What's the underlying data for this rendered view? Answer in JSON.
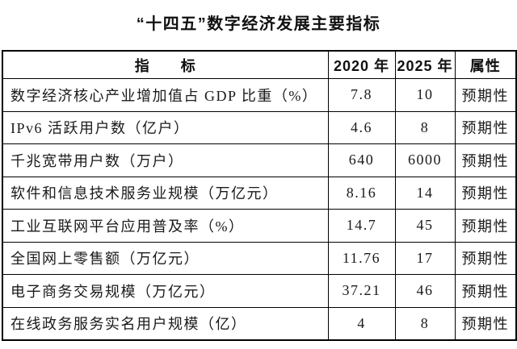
{
  "page": {
    "title": "“十四五”数字经济发展主要指标"
  },
  "colors": {
    "background": "#ffffff",
    "text": "#1a1a1a",
    "border": "#000000"
  },
  "table": {
    "headers": {
      "indicator": "指　　标",
      "y2020": "2020 年",
      "y2025": "2025 年",
      "attribute": "属性"
    },
    "rows": [
      {
        "indicator": "数字经济核心产业增加值占 GDP 比重（%）",
        "y2020": "7.8",
        "y2025": "10",
        "attribute": "预期性"
      },
      {
        "indicator": "IPv6 活跃用户数（亿户）",
        "y2020": "4.6",
        "y2025": "8",
        "attribute": "预期性"
      },
      {
        "indicator": "千兆宽带用户数（万户）",
        "y2020": "640",
        "y2025": "6000",
        "attribute": "预期性"
      },
      {
        "indicator": "软件和信息技术服务业规模（万亿元）",
        "y2020": "8.16",
        "y2025": "14",
        "attribute": "预期性"
      },
      {
        "indicator": "工业互联网平台应用普及率（%）",
        "y2020": "14.7",
        "y2025": "45",
        "attribute": "预期性"
      },
      {
        "indicator": "全国网上零售额（万亿元）",
        "y2020": "11.76",
        "y2025": "17",
        "attribute": "预期性"
      },
      {
        "indicator": "电子商务交易规模（万亿元）",
        "y2020": "37.21",
        "y2025": "46",
        "attribute": "预期性"
      },
      {
        "indicator": "在线政务服务实名用户规模（亿）",
        "y2020": "4",
        "y2025": "8",
        "attribute": "预期性"
      }
    ]
  }
}
